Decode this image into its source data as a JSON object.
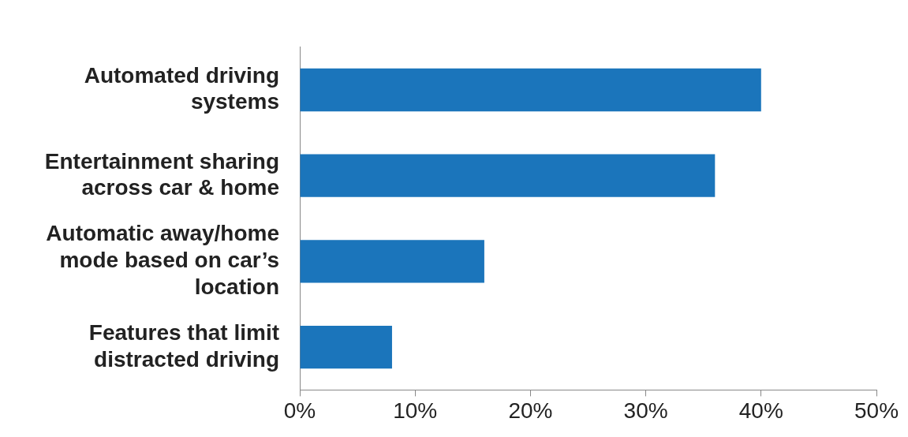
{
  "chart_data": {
    "type": "bar",
    "orientation": "horizontal",
    "categories": [
      "Automated driving systems",
      "Entertainment sharing across car & home",
      "Automatic away/home mode based on car’s location",
      "Features that limit distracted driving"
    ],
    "values": [
      40,
      36,
      16,
      8
    ],
    "color": "#1b75bb",
    "xlim": [
      0,
      50
    ],
    "xticks": [
      {
        "value": 0,
        "label": "0%"
      },
      {
        "value": 10,
        "label": "10%"
      },
      {
        "value": 20,
        "label": "20%"
      },
      {
        "value": 30,
        "label": "30%"
      },
      {
        "value": 40,
        "label": "40%"
      },
      {
        "value": 50,
        "label": "50%"
      }
    ],
    "grid": false,
    "legend": false
  }
}
